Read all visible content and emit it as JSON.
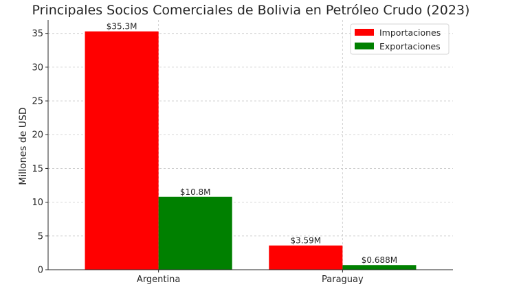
{
  "chart_data": {
    "type": "bar",
    "title": "Principales Socios Comerciales de Bolivia en Petróleo Crudo (2023)",
    "xlabel": "",
    "ylabel": "Millones de USD",
    "categories": [
      "Argentina",
      "Paraguay"
    ],
    "series": [
      {
        "name": "Importaciones",
        "values": [
          35.3,
          3.59
        ],
        "labels": [
          "$35.3M",
          "$3.59M"
        ],
        "color": "#ff0000"
      },
      {
        "name": "Exportaciones",
        "values": [
          10.8,
          0.688
        ],
        "labels": [
          "$10.8M",
          "$0.688M"
        ],
        "color": "#008000"
      }
    ],
    "ylim": [
      0,
      37
    ],
    "yticks": [
      0,
      5,
      10,
      15,
      20,
      25,
      30,
      35
    ],
    "grid": true,
    "legend_position": "top-right"
  }
}
